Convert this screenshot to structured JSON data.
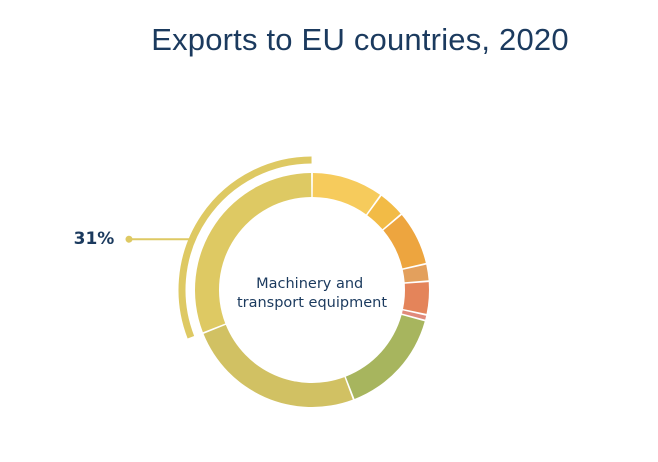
{
  "chart_data": {
    "type": "pie",
    "title": "Exports to EU countries, 2020",
    "highlighted": {
      "label_lines": [
        "Machinery and",
        "transport equipment"
      ],
      "percent_text": "31%"
    },
    "slices": [
      {
        "value": 10.0,
        "color": "#f6cb5c"
      },
      {
        "value": 3.8,
        "color": "#f2bb46"
      },
      {
        "value": 7.6,
        "color": "#eda53f"
      },
      {
        "value": 2.4,
        "color": "#e3a05d"
      },
      {
        "value": 4.6,
        "color": "#e4845a"
      },
      {
        "value": 0.8,
        "color": "#e08a7b"
      },
      {
        "value": 15.0,
        "color": "#a7b55e"
      },
      {
        "value": 24.8,
        "color": "#d1c163"
      },
      {
        "value": 31.0,
        "color": "#dec963"
      }
    ],
    "highlight_index": 8
  }
}
